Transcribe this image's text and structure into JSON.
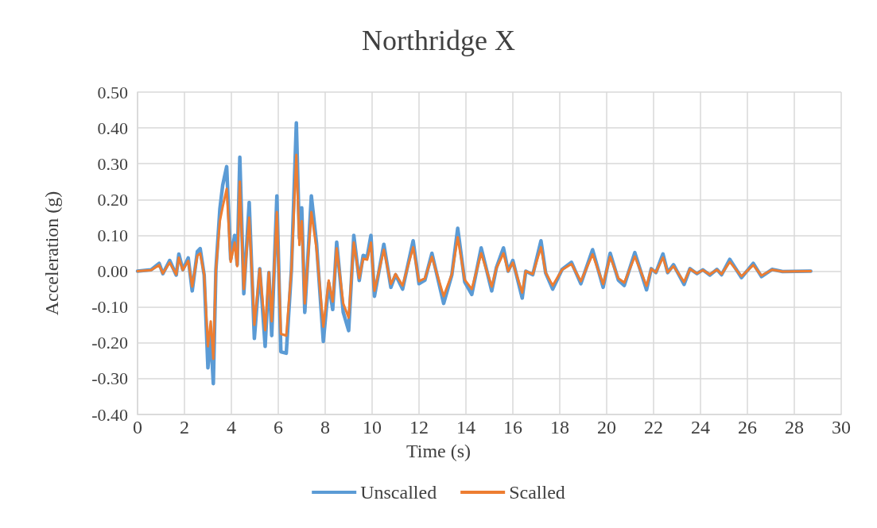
{
  "chart_data": {
    "type": "line",
    "title": "Northridge X",
    "xlabel": "Time (s)",
    "ylabel": "Acceleration (g)",
    "x": [
      0,
      0.58,
      0.92,
      1.08,
      1.37,
      1.65,
      1.76,
      1.93,
      2.16,
      2.33,
      2.55,
      2.67,
      2.84,
      3.0,
      3.12,
      3.23,
      3.34,
      3.51,
      3.63,
      3.8,
      3.97,
      4.14,
      4.25,
      4.36,
      4.53,
      4.76,
      4.98,
      5.21,
      5.44,
      5.6,
      5.72,
      5.94,
      6.11,
      6.34,
      6.56,
      6.77,
      6.9,
      7.0,
      7.13,
      7.41,
      7.63,
      7.92,
      8.15,
      8.32,
      8.49,
      8.77,
      9.0,
      9.22,
      9.45,
      9.62,
      9.79,
      9.95,
      10.1,
      10.5,
      10.8,
      11.0,
      11.3,
      11.75,
      12.0,
      12.25,
      12.55,
      13.05,
      13.4,
      13.65,
      13.95,
      14.25,
      14.65,
      15.1,
      15.3,
      15.6,
      15.8,
      16.0,
      16.4,
      16.55,
      16.85,
      17.2,
      17.4,
      17.7,
      18.1,
      18.5,
      18.9,
      19.4,
      19.85,
      20.15,
      20.5,
      20.75,
      21.2,
      21.7,
      21.9,
      22.1,
      22.4,
      22.6,
      22.85,
      23.3,
      23.55,
      23.85,
      24.1,
      24.4,
      24.7,
      24.9,
      25.25,
      25.75,
      26.25,
      26.6,
      27.05,
      27.5,
      28.7
    ],
    "series": [
      {
        "name": "Unscalled",
        "color": "#5b9bd5",
        "values": [
          0,
          0.004,
          0.022,
          -0.007,
          0.03,
          -0.011,
          0.048,
          0.004,
          0.037,
          -0.055,
          0.055,
          0.063,
          -0.011,
          -0.27,
          -0.18,
          -0.314,
          0.004,
          0.174,
          0.24,
          0.292,
          0.033,
          0.1,
          0.018,
          0.318,
          -0.063,
          0.192,
          -0.188,
          0.007,
          -0.21,
          -0.004,
          -0.18,
          0.21,
          -0.225,
          -0.229,
          0.004,
          0.414,
          0.092,
          0.177,
          -0.115,
          0.21,
          0.078,
          -0.196,
          -0.033,
          -0.107,
          0.081,
          -0.115,
          -0.166,
          0.1,
          -0.026,
          0.044,
          0.04,
          0.1,
          -0.07,
          0.075,
          -0.045,
          -0.01,
          -0.05,
          0.085,
          -0.035,
          -0.025,
          0.05,
          -0.09,
          -0.01,
          0.12,
          -0.03,
          -0.065,
          0.065,
          -0.055,
          0.01,
          0.065,
          0,
          0.03,
          -0.075,
          0,
          -0.01,
          0.085,
          -0.005,
          -0.05,
          0.005,
          0.025,
          -0.035,
          0.06,
          -0.045,
          0.05,
          -0.025,
          -0.04,
          0.052,
          -0.052,
          0.007,
          -0.004,
          0.048,
          -0.004,
          0.018,
          -0.037,
          0.007,
          -0.007,
          0.004,
          -0.011,
          0.005,
          -0.01,
          0.033,
          -0.018,
          0.022,
          -0.015,
          0.005,
          -0.001,
          0
        ]
      },
      {
        "name": "Scalled",
        "color": "#ed7d31",
        "values": [
          0,
          0.003,
          0.017,
          -0.006,
          0.024,
          -0.009,
          0.038,
          0.003,
          0.029,
          -0.043,
          0.043,
          0.05,
          -0.009,
          -0.21,
          -0.14,
          -0.245,
          0.003,
          0.14,
          0.18,
          0.23,
          0.026,
          0.08,
          0.014,
          0.25,
          -0.05,
          0.15,
          -0.15,
          0.006,
          -0.165,
          -0.003,
          -0.14,
          0.165,
          -0.175,
          -0.18,
          0.003,
          0.325,
          0.073,
          0.14,
          -0.09,
          0.165,
          0.062,
          -0.155,
          -0.026,
          -0.085,
          0.064,
          -0.09,
          -0.13,
          0.08,
          -0.02,
          0.035,
          0.032,
          0.08,
          -0.055,
          0.06,
          -0.036,
          -0.008,
          -0.04,
          0.067,
          -0.028,
          -0.02,
          0.04,
          -0.07,
          -0.008,
          0.095,
          -0.024,
          -0.05,
          0.05,
          -0.043,
          0.008,
          0.05,
          0,
          0.024,
          -0.06,
          0,
          -0.008,
          0.067,
          -0.004,
          -0.04,
          0.004,
          0.02,
          -0.028,
          0.047,
          -0.036,
          0.04,
          -0.02,
          -0.032,
          0.041,
          -0.041,
          0.006,
          -0.003,
          0.038,
          -0.003,
          0.014,
          -0.03,
          0.006,
          -0.006,
          0.003,
          -0.009,
          0.004,
          -0.008,
          0.026,
          -0.014,
          0.017,
          -0.012,
          0.004,
          -0.001,
          0
        ]
      }
    ],
    "xlim": [
      0,
      30
    ],
    "xticks": [
      0,
      2,
      4,
      6,
      8,
      10,
      12,
      14,
      16,
      18,
      20,
      22,
      24,
      26,
      28,
      30
    ],
    "ylim": [
      -0.4,
      0.5
    ],
    "yticks": [
      {
        "value": -0.4,
        "label": "-0.40"
      },
      {
        "value": -0.3,
        "label": "-0.30"
      },
      {
        "value": -0.2,
        "label": "-0.20"
      },
      {
        "value": -0.1,
        "label": "-0.10"
      },
      {
        "value": 0,
        "label": "0.00"
      },
      {
        "value": 0.1,
        "label": "0.10"
      },
      {
        "value": 0.2,
        "label": "0.20"
      },
      {
        "value": 0.3,
        "label": "0.30"
      },
      {
        "value": 0.4,
        "label": "0.40"
      },
      {
        "value": 0.5,
        "label": "0.50"
      }
    ],
    "grid": true,
    "legend": "bottom",
    "marker": "none",
    "line_style": "solid"
  }
}
